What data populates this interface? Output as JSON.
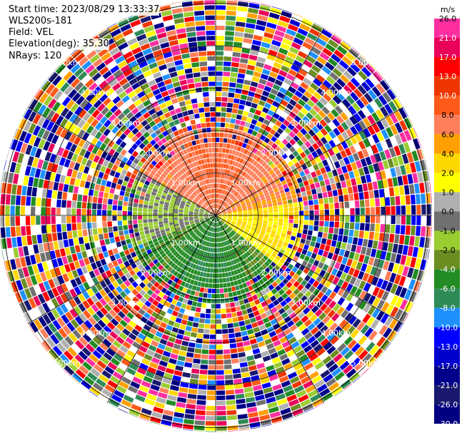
{
  "info": {
    "start_time": "Start time: 2023/08/29 13:33:37",
    "site": "WLS200s-181",
    "field": "Field: VEL",
    "elevation": "Elevation(deg): 35.30",
    "nrays": "NRays: 120"
  },
  "chart_data": {
    "type": "heatmap",
    "projection": "polar PPI",
    "field": "VEL",
    "units": "m/s",
    "n_rays": 120,
    "range_rings_km": [
      1.0,
      2.0,
      3.0,
      4.0,
      5.0
    ],
    "ring_labels": [
      "1.00km",
      "2.00km",
      "3.00km",
      "4.00km",
      "5.00km"
    ],
    "colorbar": {
      "title": "m/s",
      "ticks": [
        "26.0",
        "21.0",
        "17.0",
        "13.0",
        "10.0",
        "8.0",
        "6.0",
        "4.0",
        "2.0",
        "1.0",
        "0.0",
        "-1.0",
        "-2.0",
        "-4.0",
        "-6.0",
        "-8.0",
        "-10.0",
        "-13.0",
        "-17.0",
        "-21.0",
        "-26.0",
        "-30.0"
      ],
      "colors": [
        "#ff2fa0",
        "#e8005a",
        "#ff0000",
        "#ee3500",
        "#ff5a1a",
        "#ff7f5a",
        "#ff9f00",
        "#ffd700",
        "#ffff00",
        "#b0b0b0",
        "#707070",
        "#9acd32",
        "#6b8e23",
        "#228b22",
        "#2e8b57",
        "#1e90ff",
        "#0000ff",
        "#0000cd",
        "#00008b",
        "#191970",
        "#000080"
      ]
    }
  }
}
